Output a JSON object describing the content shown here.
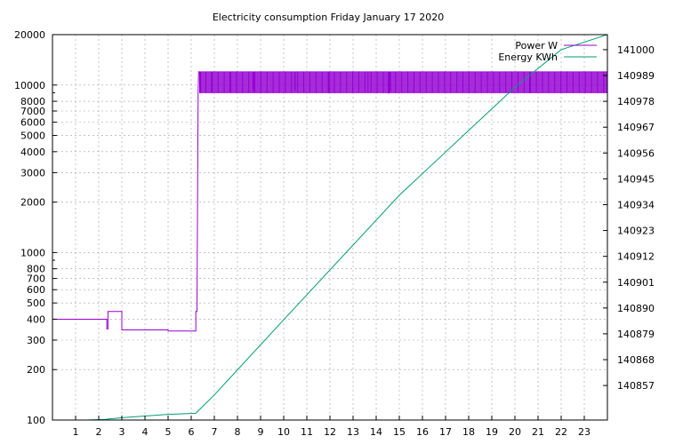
{
  "chart_data": {
    "type": "line",
    "title": "Electricity consumption Friday January 17 2020",
    "legend_position": "top-right",
    "grid": true,
    "x_axis": {
      "range": [
        0,
        24
      ],
      "ticks": [
        1,
        2,
        3,
        4,
        5,
        6,
        7,
        8,
        9,
        10,
        11,
        12,
        13,
        14,
        15,
        16,
        17,
        18,
        19,
        20,
        21,
        22,
        23
      ]
    },
    "y_axis_left": {
      "scale": "log",
      "range": [
        100,
        20000
      ],
      "ticks": [
        100,
        200,
        300,
        400,
        500,
        600,
        700,
        800,
        1000,
        2000,
        3000,
        4000,
        5000,
        6000,
        7000,
        8000,
        10000,
        20000
      ]
    },
    "y_axis_right": {
      "scale": "linear",
      "range": [
        140842.3,
        141006.4
      ],
      "ticks": [
        140857,
        140868,
        140879,
        140890,
        140901,
        140912,
        140923,
        140934,
        140945,
        140956,
        140967,
        140978,
        140989,
        141000
      ]
    },
    "series": [
      {
        "name": "Power W",
        "axis": "left",
        "color": "#9400d3",
        "step_points": [
          [
            0.0,
            400
          ],
          [
            2.35,
            400
          ],
          [
            2.35,
            350
          ],
          [
            2.4,
            350
          ],
          [
            2.4,
            445
          ],
          [
            3.0,
            445
          ],
          [
            3.0,
            345
          ],
          [
            5.0,
            345
          ],
          [
            5.0,
            340
          ],
          [
            6.2,
            340
          ],
          [
            6.2,
            445
          ],
          [
            6.25,
            445
          ],
          [
            6.3,
            9200
          ],
          [
            6.32,
            12000
          ]
        ],
        "cycling": {
          "start": 6.32,
          "end": 24.0,
          "high": 12000,
          "low": 9000,
          "dips": [
            [
              6.4,
              9000
            ],
            [
              6.9,
              9100
            ],
            [
              7.7,
              9050
            ],
            [
              8.7,
              9200
            ],
            [
              10.5,
              9250
            ],
            [
              11.95,
              8950
            ],
            [
              13.65,
              9000
            ],
            [
              14.55,
              8900
            ],
            [
              14.6,
              9100
            ],
            [
              20.65,
              8950
            ]
          ]
        }
      },
      {
        "name": "Energy KWh",
        "axis": "right",
        "color": "#009e73",
        "points": [
          [
            1.5,
            140842.3
          ],
          [
            2.3,
            140842.6
          ],
          [
            3.0,
            140843.3
          ],
          [
            5.0,
            140844.7
          ],
          [
            6.2,
            140845.2
          ],
          [
            7.0,
            140853
          ],
          [
            10.0,
            140885
          ],
          [
            15.0,
            140938
          ],
          [
            20.0,
            140984
          ],
          [
            22.0,
            141000
          ],
          [
            24.0,
            141006.4
          ]
        ]
      }
    ]
  }
}
